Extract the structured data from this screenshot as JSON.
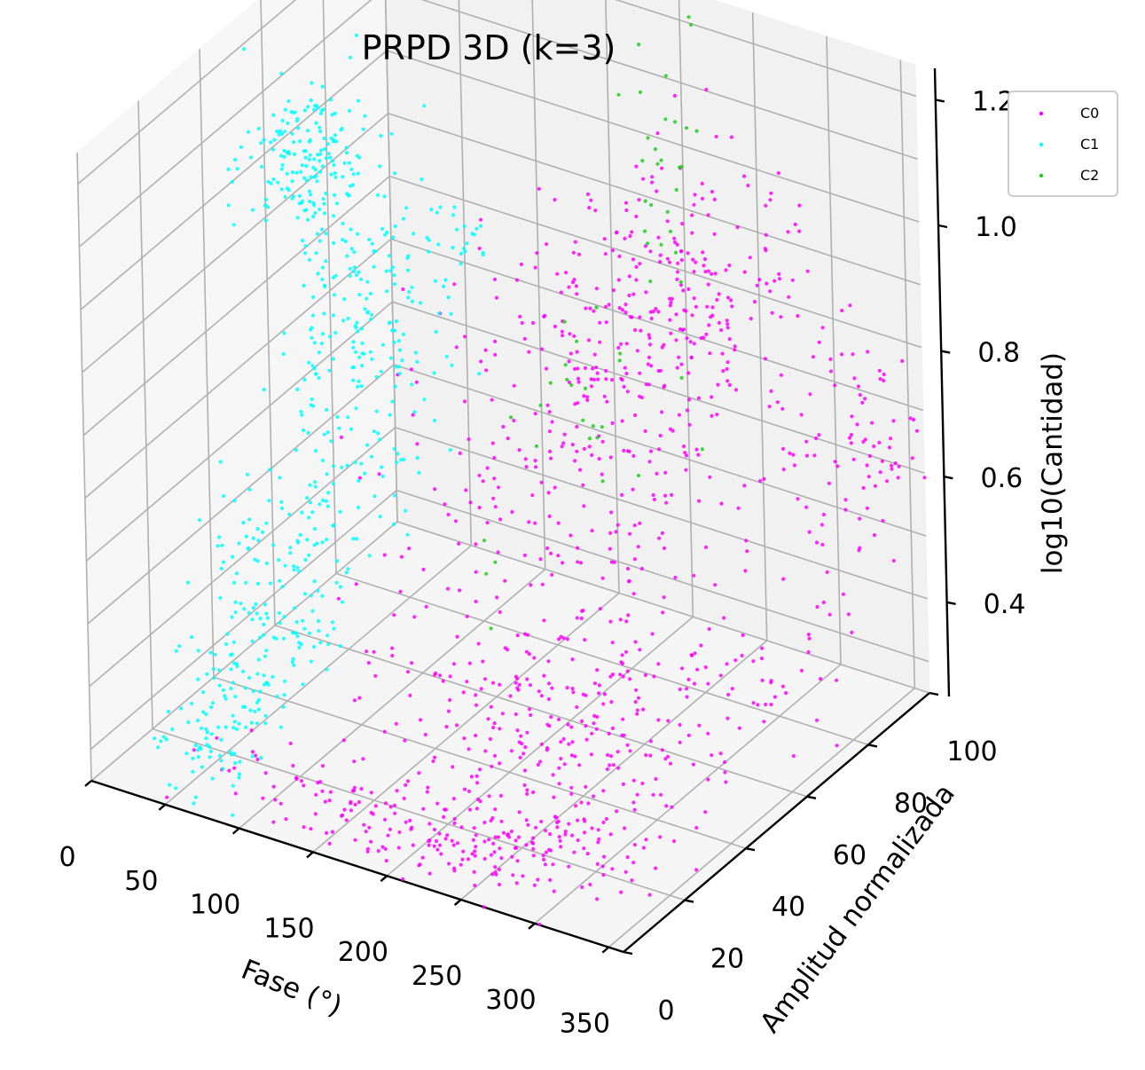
{
  "chart_data": {
    "type": "scatter",
    "projection": "3d",
    "title": "PRPD 3D (k=3)",
    "xlabel": "Fase (°)",
    "ylabel": "Amplitud normalizada",
    "zlabel": "log10(Cantidad)",
    "xlim": [
      0,
      360
    ],
    "ylim": [
      0,
      100
    ],
    "zlim": [
      0.25,
      1.25
    ],
    "x_ticks": [
      "0",
      "50",
      "100",
      "150",
      "200",
      "250",
      "300",
      "350"
    ],
    "y_ticks": [
      "0",
      "20",
      "40",
      "60",
      "80",
      "100"
    ],
    "z_ticks": [
      "0.4",
      "0.6",
      "0.8",
      "1.0",
      "1.2"
    ],
    "grid": true,
    "legend": "top-right",
    "series": [
      {
        "name": "C0",
        "color": "#ff00ff",
        "clusters": [
          {
            "x": 180,
            "y": 5,
            "z": 0.31,
            "sx": 60,
            "sy": 5,
            "sz": 0.03,
            "n": 120
          },
          {
            "x": 290,
            "y": 10,
            "z": 0.32,
            "sx": 40,
            "sy": 8,
            "sz": 0.03,
            "n": 90
          },
          {
            "x": 230,
            "y": 30,
            "z": 0.4,
            "sx": 50,
            "sy": 15,
            "sz": 0.1,
            "n": 220
          },
          {
            "x": 300,
            "y": 50,
            "z": 0.36,
            "sx": 30,
            "sy": 25,
            "sz": 0.08,
            "n": 120
          },
          {
            "x": 200,
            "y": 65,
            "z": 0.6,
            "sx": 45,
            "sy": 20,
            "sz": 0.12,
            "n": 200
          },
          {
            "x": 230,
            "y": 85,
            "z": 0.85,
            "sx": 30,
            "sy": 12,
            "sz": 0.1,
            "n": 200
          },
          {
            "x": 320,
            "y": 95,
            "z": 0.62,
            "sx": 25,
            "sy": 5,
            "sz": 0.1,
            "n": 90
          },
          {
            "x": 160,
            "y": 85,
            "z": 0.74,
            "sx": 40,
            "sy": 10,
            "sz": 0.08,
            "n": 80
          }
        ]
      },
      {
        "name": "C1",
        "color": "#00ffff",
        "clusters": [
          {
            "x": 30,
            "y": 60,
            "z": 1.02,
            "sx": 15,
            "sy": 8,
            "sz": 0.06,
            "n": 170
          },
          {
            "x": 40,
            "y": 70,
            "z": 0.68,
            "sx": 15,
            "sy": 10,
            "sz": 0.15,
            "n": 220
          },
          {
            "x": 45,
            "y": 40,
            "z": 0.42,
            "sx": 15,
            "sy": 15,
            "sz": 0.1,
            "n": 170
          },
          {
            "x": 60,
            "y": 15,
            "z": 0.33,
            "sx": 12,
            "sy": 10,
            "sz": 0.05,
            "n": 90
          },
          {
            "x": 90,
            "y": 80,
            "z": 0.84,
            "sx": 10,
            "sy": 3,
            "sz": 0.04,
            "n": 25
          }
        ]
      },
      {
        "name": "C2",
        "color": "#22cc22",
        "clusters": [
          {
            "x": 190,
            "y": 100,
            "z": 0.95,
            "sx": 12,
            "sy": 3,
            "sz": 0.2,
            "n": 35
          },
          {
            "x": 150,
            "y": 90,
            "z": 0.6,
            "sx": 15,
            "sy": 6,
            "sz": 0.08,
            "n": 20
          },
          {
            "x": 120,
            "y": 75,
            "z": 0.38,
            "sx": 8,
            "sy": 5,
            "sz": 0.03,
            "n": 4
          }
        ]
      }
    ]
  }
}
